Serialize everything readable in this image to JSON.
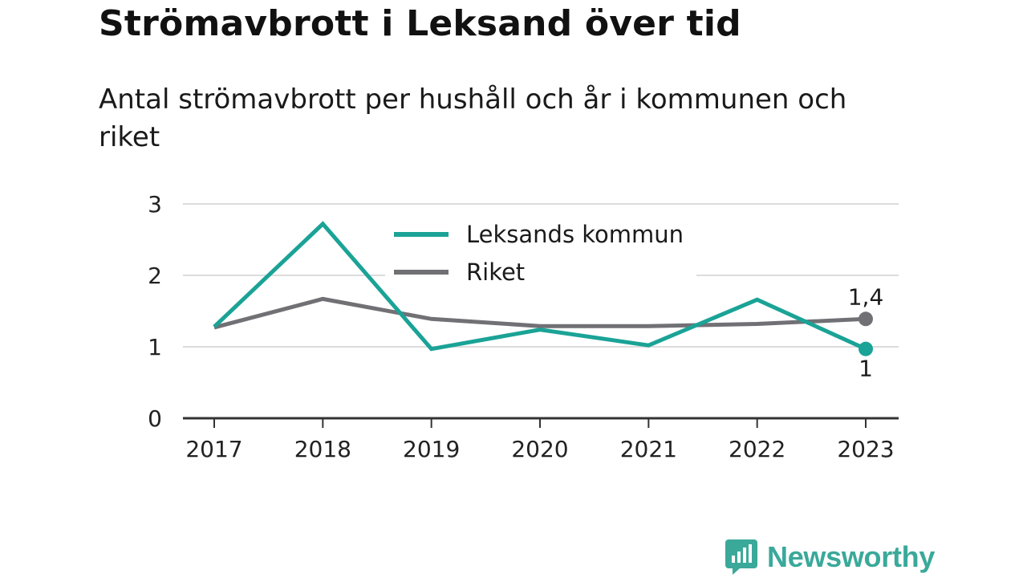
{
  "title": "Strömavbrott i Leksand över tid",
  "subtitle": "Antal strömavbrott per hushåll och år i kommunen och riket",
  "brand": {
    "name": "Newsworthy",
    "icon": "bar-chart-speech-bubble-icon",
    "color": "#3aa99a"
  },
  "chart_data": {
    "type": "line",
    "x": [
      "2017",
      "2018",
      "2019",
      "2020",
      "2021",
      "2022",
      "2023"
    ],
    "ylim": [
      0,
      3
    ],
    "yticks": [
      "0",
      "1",
      "2",
      "3"
    ],
    "grid": true,
    "legend_position": "top-center",
    "series": [
      {
        "name": "Leksands kommun",
        "color": "#1aa396",
        "values": [
          1.28,
          2.72,
          0.97,
          1.24,
          1.02,
          1.66,
          0.97
        ],
        "end_label": "1"
      },
      {
        "name": "Riket",
        "color": "#717075",
        "values": [
          1.27,
          1.67,
          1.39,
          1.29,
          1.29,
          1.32,
          1.39
        ],
        "end_label": "1,4"
      }
    ]
  }
}
